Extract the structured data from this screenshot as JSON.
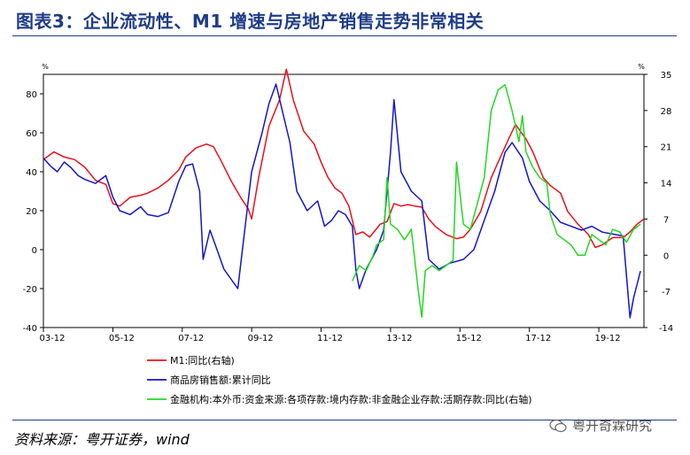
{
  "title": "图表3：企业流动性、M1 增速与房地产销售走势非常相关",
  "source": "资料来源：粤开证券，wind",
  "watermark": "粤开奇霖研究",
  "chart_data": {
    "type": "line",
    "left_axis": {
      "unit": "%",
      "range": [
        -40,
        90
      ],
      "ticks": [
        -40,
        -20,
        0,
        20,
        40,
        60,
        80
      ]
    },
    "right_axis": {
      "unit": "%",
      "range": [
        -14,
        35
      ],
      "ticks": [
        -14,
        -7,
        0,
        7,
        14,
        21,
        28,
        35
      ]
    },
    "x_ticks": [
      "03-12",
      "05-12",
      "07-12",
      "09-12",
      "11-12",
      "13-12",
      "15-12",
      "17-12",
      "19-12"
    ],
    "x_range": [
      2003.0,
      2020.3
    ],
    "legend_position": "bottom",
    "series": [
      {
        "name": "M1:同比(右轴)",
        "axis": "right",
        "color": "#E8101A",
        "points": [
          [
            2003.0,
            18.5
          ],
          [
            2003.3,
            20.0
          ],
          [
            2003.6,
            19.0
          ],
          [
            2003.9,
            18.5
          ],
          [
            2004.2,
            17.0
          ],
          [
            2004.5,
            14.5
          ],
          [
            2004.8,
            13.7
          ],
          [
            2005.0,
            10.0
          ],
          [
            2005.2,
            9.5
          ],
          [
            2005.5,
            11.2
          ],
          [
            2005.8,
            11.6
          ],
          [
            2006.0,
            12.0
          ],
          [
            2006.3,
            13.0
          ],
          [
            2006.6,
            14.5
          ],
          [
            2006.9,
            16.5
          ],
          [
            2007.1,
            19.0
          ],
          [
            2007.4,
            20.8
          ],
          [
            2007.7,
            21.5
          ],
          [
            2007.9,
            21.0
          ],
          [
            2008.1,
            18.5
          ],
          [
            2008.4,
            14.5
          ],
          [
            2008.7,
            11.0
          ],
          [
            2008.9,
            9.0
          ],
          [
            2009.0,
            7.0
          ],
          [
            2009.2,
            15.0
          ],
          [
            2009.5,
            25.0
          ],
          [
            2009.8,
            30.0
          ],
          [
            2010.0,
            36.0
          ],
          [
            2010.2,
            30.0
          ],
          [
            2010.5,
            24.0
          ],
          [
            2010.8,
            21.5
          ],
          [
            2011.0,
            18.0
          ],
          [
            2011.2,
            15.0
          ],
          [
            2011.4,
            13.0
          ],
          [
            2011.6,
            12.0
          ],
          [
            2011.8,
            9.5
          ],
          [
            2012.0,
            4.0
          ],
          [
            2012.2,
            4.5
          ],
          [
            2012.4,
            3.5
          ],
          [
            2012.7,
            6.0
          ],
          [
            2012.9,
            6.5
          ],
          [
            2013.1,
            10.0
          ],
          [
            2013.3,
            9.5
          ],
          [
            2013.5,
            9.8
          ],
          [
            2013.7,
            9.5
          ],
          [
            2013.9,
            9.3
          ],
          [
            2014.1,
            7.0
          ],
          [
            2014.3,
            5.5
          ],
          [
            2014.6,
            4.0
          ],
          [
            2014.9,
            3.2
          ],
          [
            2015.1,
            3.5
          ],
          [
            2015.3,
            5.0
          ],
          [
            2015.6,
            8.5
          ],
          [
            2015.9,
            15.0
          ],
          [
            2016.1,
            18.0
          ],
          [
            2016.4,
            22.5
          ],
          [
            2016.6,
            25.3
          ],
          [
            2016.9,
            22.5
          ],
          [
            2017.1,
            20.0
          ],
          [
            2017.4,
            15.0
          ],
          [
            2017.6,
            13.5
          ],
          [
            2017.9,
            12.0
          ],
          [
            2018.1,
            8.5
          ],
          [
            2018.4,
            6.0
          ],
          [
            2018.7,
            4.0
          ],
          [
            2018.9,
            1.5
          ],
          [
            2019.1,
            2.0
          ],
          [
            2019.4,
            3.4
          ],
          [
            2019.7,
            3.4
          ],
          [
            2019.9,
            4.5
          ],
          [
            2020.1,
            6.0
          ],
          [
            2020.3,
            7.0
          ]
        ]
      },
      {
        "name": "商品房销售额:累计同比",
        "axis": "left",
        "color": "#1515C8",
        "points": [
          [
            2003.0,
            47.0
          ],
          [
            2003.2,
            43.0
          ],
          [
            2003.4,
            40.0
          ],
          [
            2003.6,
            45.0
          ],
          [
            2003.8,
            42.0
          ],
          [
            2004.0,
            38.0
          ],
          [
            2004.2,
            36.0
          ],
          [
            2004.5,
            34.0
          ],
          [
            2004.8,
            38.0
          ],
          [
            2005.0,
            27.0
          ],
          [
            2005.2,
            20.0
          ],
          [
            2005.5,
            18.0
          ],
          [
            2005.8,
            22.0
          ],
          [
            2006.0,
            18.0
          ],
          [
            2006.3,
            17.0
          ],
          [
            2006.6,
            19.0
          ],
          [
            2006.9,
            35.0
          ],
          [
            2007.1,
            43.0
          ],
          [
            2007.3,
            44.0
          ],
          [
            2007.5,
            30.0
          ],
          [
            2007.6,
            -5.0
          ],
          [
            2007.8,
            10.0
          ],
          [
            2008.0,
            0.0
          ],
          [
            2008.2,
            -10.0
          ],
          [
            2008.4,
            -15.0
          ],
          [
            2008.6,
            -20.0
          ],
          [
            2008.8,
            10.0
          ],
          [
            2009.0,
            40.0
          ],
          [
            2009.3,
            60.0
          ],
          [
            2009.5,
            75.0
          ],
          [
            2009.7,
            85.0
          ],
          [
            2009.9,
            70.0
          ],
          [
            2010.1,
            55.0
          ],
          [
            2010.3,
            30.0
          ],
          [
            2010.6,
            20.0
          ],
          [
            2010.9,
            25.0
          ],
          [
            2011.1,
            12.0
          ],
          [
            2011.3,
            15.0
          ],
          [
            2011.5,
            20.0
          ],
          [
            2011.7,
            18.0
          ],
          [
            2011.9,
            12.0
          ],
          [
            2012.0,
            -10.0
          ],
          [
            2012.1,
            -20.0
          ],
          [
            2012.3,
            -10.0
          ],
          [
            2012.6,
            0.0
          ],
          [
            2012.8,
            10.0
          ],
          [
            2013.0,
            50.0
          ],
          [
            2013.1,
            77.0
          ],
          [
            2013.3,
            40.0
          ],
          [
            2013.6,
            30.0
          ],
          [
            2013.9,
            25.0
          ],
          [
            2014.1,
            -5.0
          ],
          [
            2014.4,
            -10.0
          ],
          [
            2014.7,
            -7.0
          ],
          [
            2014.9,
            -6.0
          ],
          [
            2015.1,
            -5.0
          ],
          [
            2015.4,
            0.0
          ],
          [
            2015.7,
            15.0
          ],
          [
            2016.0,
            30.0
          ],
          [
            2016.3,
            50.0
          ],
          [
            2016.5,
            55.0
          ],
          [
            2016.8,
            47.0
          ],
          [
            2017.0,
            35.0
          ],
          [
            2017.3,
            25.0
          ],
          [
            2017.6,
            20.0
          ],
          [
            2017.9,
            14.0
          ],
          [
            2018.2,
            12.0
          ],
          [
            2018.5,
            10.0
          ],
          [
            2018.8,
            12.0
          ],
          [
            2019.1,
            9.0
          ],
          [
            2019.4,
            8.0
          ],
          [
            2019.7,
            7.0
          ],
          [
            2019.9,
            -35.0
          ],
          [
            2020.0,
            -25.0
          ],
          [
            2020.2,
            -11.0
          ]
        ]
      },
      {
        "name": "金融机构:本外币:资金来源:各项存款:境内存款:非金融企业存款:活期存款:同比(右轴)",
        "axis": "right",
        "color": "#22D822",
        "points": [
          [
            2011.9,
            -5.0
          ],
          [
            2012.1,
            -2.0
          ],
          [
            2012.3,
            -3.0
          ],
          [
            2012.5,
            0.0
          ],
          [
            2012.6,
            2.0
          ],
          [
            2012.8,
            3.0
          ],
          [
            2012.9,
            15.0
          ],
          [
            2013.0,
            6.0
          ],
          [
            2013.2,
            5.0
          ],
          [
            2013.4,
            3.0
          ],
          [
            2013.6,
            5.0
          ],
          [
            2013.8,
            -7.0
          ],
          [
            2013.9,
            -12.0
          ],
          [
            2014.0,
            -3.0
          ],
          [
            2014.2,
            -2.0
          ],
          [
            2014.4,
            -3.0
          ],
          [
            2014.6,
            -2.0
          ],
          [
            2014.8,
            -1.0
          ],
          [
            2014.9,
            18.0
          ],
          [
            2015.1,
            6.0
          ],
          [
            2015.3,
            5.0
          ],
          [
            2015.5,
            10.0
          ],
          [
            2015.7,
            15.0
          ],
          [
            2015.9,
            28.0
          ],
          [
            2016.1,
            32.0
          ],
          [
            2016.3,
            33.0
          ],
          [
            2016.5,
            28.0
          ],
          [
            2016.7,
            22.0
          ],
          [
            2016.8,
            27.0
          ],
          [
            2016.9,
            20.0
          ],
          [
            2017.1,
            17.0
          ],
          [
            2017.3,
            15.0
          ],
          [
            2017.5,
            14.0
          ],
          [
            2017.6,
            8.0
          ],
          [
            2017.8,
            4.0
          ],
          [
            2018.0,
            3.0
          ],
          [
            2018.2,
            2.0
          ],
          [
            2018.4,
            0.0
          ],
          [
            2018.6,
            0.0
          ],
          [
            2018.8,
            4.0
          ],
          [
            2019.0,
            3.0
          ],
          [
            2019.2,
            2.0
          ],
          [
            2019.4,
            5.0
          ],
          [
            2019.6,
            4.5
          ],
          [
            2019.8,
            2.5
          ],
          [
            2020.0,
            5.0
          ],
          [
            2020.2,
            6.0
          ]
        ]
      }
    ]
  }
}
